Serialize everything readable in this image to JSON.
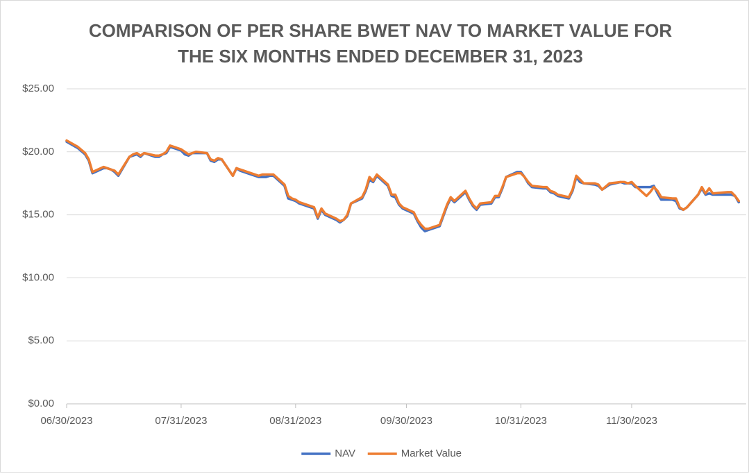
{
  "chart_data": {
    "type": "line",
    "title": "COMPARISON OF PER SHARE BWET NAV TO MARKET VALUE FOR",
    "subtitle": "THE SIX MONTHS ENDED DECEMBER 31, 2023",
    "x": [
      "06/30/2023",
      "07/03/2023",
      "07/05/2023",
      "07/06/2023",
      "07/07/2023",
      "07/10/2023",
      "07/11/2023",
      "07/12/2023",
      "07/13/2023",
      "07/14/2023",
      "07/17/2023",
      "07/18/2023",
      "07/19/2023",
      "07/20/2023",
      "07/21/2023",
      "07/24/2023",
      "07/25/2023",
      "07/26/2023",
      "07/27/2023",
      "07/28/2023",
      "07/31/2023",
      "08/01/2023",
      "08/02/2023",
      "08/03/2023",
      "08/04/2023",
      "08/07/2023",
      "08/08/2023",
      "08/09/2023",
      "08/10/2023",
      "08/11/2023",
      "08/14/2023",
      "08/15/2023",
      "08/16/2023",
      "08/17/2023",
      "08/18/2023",
      "08/21/2023",
      "08/22/2023",
      "08/23/2023",
      "08/24/2023",
      "08/25/2023",
      "08/28/2023",
      "08/29/2023",
      "08/30/2023",
      "08/31/2023",
      "09/01/2023",
      "09/05/2023",
      "09/06/2023",
      "09/07/2023",
      "09/08/2023",
      "09/11/2023",
      "09/12/2023",
      "09/13/2023",
      "09/14/2023",
      "09/15/2023",
      "09/18/2023",
      "09/19/2023",
      "09/20/2023",
      "09/21/2023",
      "09/22/2023",
      "09/25/2023",
      "09/26/2023",
      "09/27/2023",
      "09/28/2023",
      "09/29/2023",
      "10/02/2023",
      "10/03/2023",
      "10/04/2023",
      "10/05/2023",
      "10/06/2023",
      "10/09/2023",
      "10/10/2023",
      "10/11/2023",
      "10/12/2023",
      "10/13/2023",
      "10/16/2023",
      "10/17/2023",
      "10/18/2023",
      "10/19/2023",
      "10/20/2023",
      "10/23/2023",
      "10/24/2023",
      "10/25/2023",
      "10/26/2023",
      "10/27/2023",
      "10/30/2023",
      "10/31/2023",
      "11/01/2023",
      "11/02/2023",
      "11/03/2023",
      "11/06/2023",
      "11/07/2023",
      "11/08/2023",
      "11/09/2023",
      "11/10/2023",
      "11/13/2023",
      "11/14/2023",
      "11/15/2023",
      "11/16/2023",
      "11/17/2023",
      "11/20/2023",
      "11/21/2023",
      "11/22/2023",
      "11/24/2023",
      "11/27/2023",
      "11/28/2023",
      "11/29/2023",
      "11/30/2023",
      "12/01/2023",
      "12/04/2023",
      "12/05/2023",
      "12/06/2023",
      "12/07/2023",
      "12/08/2023",
      "12/11/2023",
      "12/12/2023",
      "12/13/2023",
      "12/14/2023",
      "12/15/2023",
      "12/18/2023",
      "12/19/2023",
      "12/20/2023",
      "12/21/2023",
      "12/22/2023",
      "12/26/2023",
      "12/27/2023",
      "12/28/2023",
      "12/29/2023"
    ],
    "series": [
      {
        "name": "NAV",
        "color": "#4472c4",
        "values": [
          20.8,
          20.3,
          19.8,
          19.3,
          18.3,
          18.7,
          18.7,
          18.6,
          18.4,
          18.1,
          19.6,
          19.7,
          19.8,
          19.6,
          19.9,
          19.6,
          19.6,
          19.8,
          19.9,
          20.4,
          20.1,
          19.8,
          19.7,
          19.9,
          19.9,
          19.9,
          19.3,
          19.2,
          19.4,
          19.4,
          18.1,
          18.7,
          18.5,
          18.4,
          18.3,
          18.0,
          18.0,
          18.0,
          18.1,
          18.1,
          17.3,
          16.3,
          16.2,
          16.1,
          15.9,
          15.5,
          14.7,
          15.4,
          15.0,
          14.6,
          14.4,
          14.6,
          14.9,
          15.9,
          16.3,
          16.9,
          17.8,
          17.6,
          18.1,
          17.3,
          16.5,
          16.4,
          15.8,
          15.5,
          15.1,
          14.5,
          14.0,
          13.7,
          13.8,
          14.1,
          14.9,
          15.7,
          16.3,
          16.0,
          16.8,
          16.2,
          15.7,
          15.4,
          15.8,
          15.9,
          16.4,
          16.4,
          17.1,
          18.0,
          18.4,
          18.4,
          18.0,
          17.5,
          17.2,
          17.1,
          17.1,
          16.8,
          16.7,
          16.5,
          16.3,
          16.9,
          18.0,
          17.6,
          17.5,
          17.4,
          17.3,
          17.0,
          17.4,
          17.6,
          17.5,
          17.5,
          17.5,
          17.2,
          17.2,
          17.2,
          17.3,
          16.7,
          16.2,
          16.2,
          16.1,
          15.5,
          15.4,
          15.6,
          16.6,
          17.1,
          16.6,
          16.7,
          16.6,
          16.6,
          16.6,
          16.5,
          16.0
        ]
      },
      {
        "name": "Market Value",
        "color": "#ed7d31",
        "values": [
          20.9,
          20.4,
          19.9,
          19.4,
          18.4,
          18.8,
          18.7,
          18.6,
          18.5,
          18.2,
          19.6,
          19.8,
          19.9,
          19.7,
          19.9,
          19.7,
          19.7,
          19.8,
          20.0,
          20.5,
          20.2,
          20.0,
          19.8,
          19.9,
          20.0,
          19.9,
          19.4,
          19.3,
          19.5,
          19.4,
          18.1,
          18.7,
          18.6,
          18.5,
          18.4,
          18.1,
          18.2,
          18.2,
          18.2,
          18.2,
          17.4,
          16.5,
          16.3,
          16.2,
          16.0,
          15.6,
          14.8,
          15.5,
          15.1,
          14.7,
          14.5,
          14.6,
          15.0,
          15.9,
          16.4,
          17.0,
          18.0,
          17.7,
          18.2,
          17.4,
          16.6,
          16.6,
          15.9,
          15.6,
          15.2,
          14.6,
          14.2,
          13.9,
          13.9,
          14.2,
          15.0,
          15.8,
          16.4,
          16.1,
          16.9,
          16.3,
          15.8,
          15.5,
          15.9,
          16.0,
          16.5,
          16.5,
          17.2,
          18.0,
          18.3,
          18.3,
          18.0,
          17.6,
          17.3,
          17.2,
          17.2,
          16.9,
          16.8,
          16.6,
          16.4,
          17.0,
          18.1,
          17.8,
          17.5,
          17.5,
          17.4,
          17.0,
          17.5,
          17.6,
          17.6,
          17.5,
          17.6,
          17.3,
          16.5,
          16.8,
          17.2,
          16.9,
          16.4,
          16.3,
          16.3,
          15.6,
          15.4,
          15.6,
          16.6,
          17.2,
          16.7,
          17.1,
          16.7,
          16.8,
          16.8,
          16.5,
          16.1
        ]
      }
    ],
    "xlim": [
      "06/30/2023",
      "12/31/2023"
    ],
    "xticks": [
      "06/30/2023",
      "07/31/2023",
      "08/31/2023",
      "09/30/2023",
      "10/31/2023",
      "11/30/2023"
    ],
    "ylim": [
      0,
      25
    ],
    "yticks": [
      {
        "value": 0,
        "label": "$0.00"
      },
      {
        "value": 5,
        "label": "$5.00"
      },
      {
        "value": 10,
        "label": "$10.00"
      },
      {
        "value": 15,
        "label": "$15.00"
      },
      {
        "value": 20,
        "label": "$20.00"
      },
      {
        "value": 25,
        "label": "$25.00"
      }
    ],
    "grid": true,
    "legend": "bottom"
  }
}
